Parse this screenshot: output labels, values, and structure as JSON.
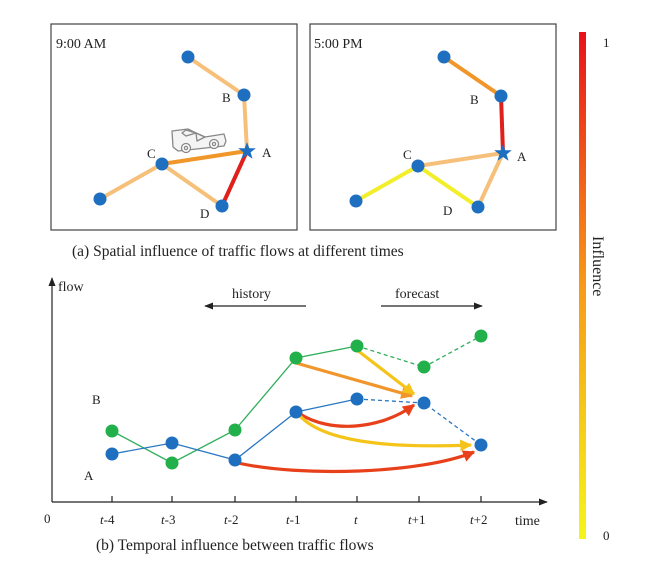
{
  "colors": {
    "node_blue": "#1f6fc0",
    "node_green": "#22b04a",
    "line_blue": "#2a78c2",
    "line_green": "#2fae5a",
    "edge_light": "#f6c07a",
    "edge_mid": "#f0962a",
    "edge_strong": "#e0201a",
    "edge_weak": "#f2ef2a",
    "colorbar_top": "#e8121a",
    "colorbar_mid": "#f79a18",
    "colorbar_bottom": "#f5f51a"
  },
  "panel_a": {
    "caption": "(a) Spatial influence of traffic flows  at different times",
    "left_map": {
      "time_label": "9:00 AM",
      "node_labels": {
        "A": "A",
        "B": "B",
        "C": "C",
        "D": "D"
      },
      "edges": [
        {
          "id": "top-b",
          "strength": "light"
        },
        {
          "id": "b-a",
          "strength": "light"
        },
        {
          "id": "c-a",
          "strength": "mid"
        },
        {
          "id": "a-d",
          "strength": "strong"
        },
        {
          "id": "c-d",
          "strength": "light"
        },
        {
          "id": "c-bl",
          "strength": "light"
        }
      ]
    },
    "right_map": {
      "time_label": "5:00 PM",
      "node_labels": {
        "A": "A",
        "B": "B",
        "C": "C",
        "D": "D"
      },
      "edges": [
        {
          "id": "top-b",
          "strength": "mid"
        },
        {
          "id": "b-a",
          "strength": "strong"
        },
        {
          "id": "c-a",
          "strength": "light"
        },
        {
          "id": "a-d",
          "strength": "light"
        },
        {
          "id": "c-d",
          "strength": "weak"
        },
        {
          "id": "c-bl",
          "strength": "weak"
        }
      ]
    }
  },
  "panel_b": {
    "caption": "(b) Temporal influence between traffic flows",
    "y_axis_label": "flow",
    "x_axis_label": "time",
    "origin_label": "0",
    "tick_labels": [
      {
        "base": "t",
        "suffix": "-4"
      },
      {
        "base": "t",
        "suffix": "-3"
      },
      {
        "base": "t",
        "suffix": "-2"
      },
      {
        "base": "t",
        "suffix": "-1"
      },
      {
        "base": "t",
        "suffix": ""
      },
      {
        "base": "t",
        "suffix": "+1"
      },
      {
        "base": "t",
        "suffix": "+2"
      }
    ],
    "history_label": "history",
    "forecast_label": "forecast",
    "series_labels": {
      "A": "A",
      "B": "B"
    }
  },
  "colorbar": {
    "title": "Influence",
    "max_label": "1",
    "min_label": "0"
  }
}
